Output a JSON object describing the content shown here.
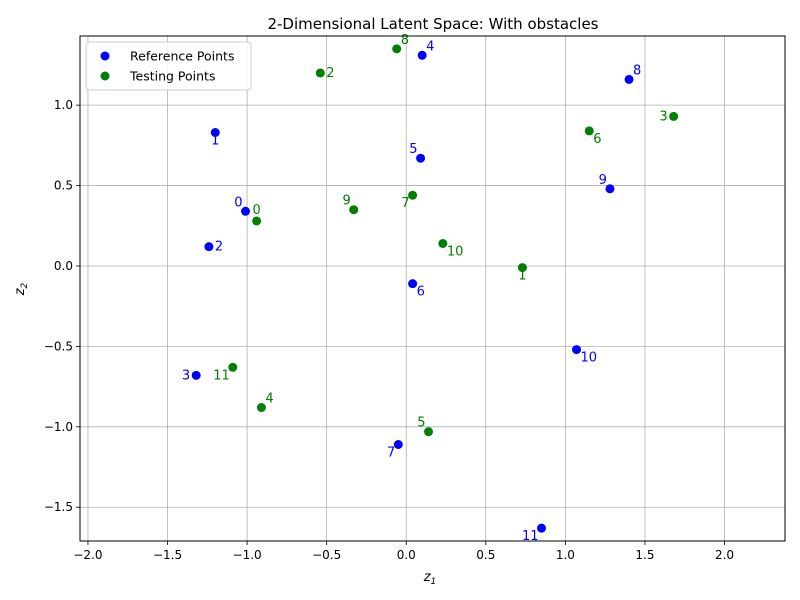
{
  "chart_data": {
    "type": "scatter",
    "title": "2-Dimensional Latent Space: With obstacles",
    "xlabel_base": "z",
    "xlabel_sub": "1",
    "ylabel_base": "z",
    "ylabel_sub": "2",
    "xlim": [
      -2.05,
      2.38
    ],
    "ylim": [
      -1.71,
      1.43
    ],
    "xticks": [
      -2.0,
      -1.5,
      -1.0,
      -0.5,
      0.0,
      0.5,
      1.0,
      1.5,
      2.0
    ],
    "xtick_labels": [
      "−2.0",
      "−1.5",
      "−1.0",
      "−0.5",
      "0.0",
      "0.5",
      "1.0",
      "1.5",
      "2.0"
    ],
    "yticks": [
      -1.5,
      -1.0,
      -0.5,
      0.0,
      0.5,
      1.0
    ],
    "ytick_labels": [
      "−1.5",
      "−1.0",
      "−0.5",
      "0.0",
      "0.5",
      "1.0"
    ],
    "grid": true,
    "legend_position": "top-left",
    "series": [
      {
        "name": "Reference Points",
        "color": "#0000ff",
        "points": [
          {
            "label": "0",
            "x": -1.01,
            "y": 0.34,
            "lpos": "above-left"
          },
          {
            "label": "1",
            "x": -1.2,
            "y": 0.83,
            "lpos": "below"
          },
          {
            "label": "2",
            "x": -1.24,
            "y": 0.12,
            "lpos": "right"
          },
          {
            "label": "3",
            "x": -1.32,
            "y": -0.68,
            "lpos": "left"
          },
          {
            "label": "4",
            "x": 0.1,
            "y": 1.31,
            "lpos": "above-right"
          },
          {
            "label": "5",
            "x": 0.09,
            "y": 0.67,
            "lpos": "above-left"
          },
          {
            "label": "6",
            "x": 0.04,
            "y": -0.11,
            "lpos": "below-right"
          },
          {
            "label": "7",
            "x": -0.05,
            "y": -1.11,
            "lpos": "below-left"
          },
          {
            "label": "8",
            "x": 1.4,
            "y": 1.16,
            "lpos": "above-right"
          },
          {
            "label": "9",
            "x": 1.28,
            "y": 0.48,
            "lpos": "above-left"
          },
          {
            "label": "10",
            "x": 1.07,
            "y": -0.52,
            "lpos": "below-right"
          },
          {
            "label": "11",
            "x": 0.85,
            "y": -1.63,
            "lpos": "below-left"
          }
        ]
      },
      {
        "name": "Testing Points",
        "color": "#008000",
        "points": [
          {
            "label": "0",
            "x": -0.94,
            "y": 0.28,
            "lpos": "above"
          },
          {
            "label": "1",
            "x": 0.73,
            "y": -0.01,
            "lpos": "below"
          },
          {
            "label": "2",
            "x": -0.54,
            "y": 1.2,
            "lpos": "right"
          },
          {
            "label": "3",
            "x": 1.68,
            "y": 0.93,
            "lpos": "left"
          },
          {
            "label": "4",
            "x": -0.91,
            "y": -0.88,
            "lpos": "above-right"
          },
          {
            "label": "5",
            "x": 0.14,
            "y": -1.03,
            "lpos": "above-left"
          },
          {
            "label": "6",
            "x": 1.15,
            "y": 0.84,
            "lpos": "below-right"
          },
          {
            "label": "7",
            "x": 0.04,
            "y": 0.44,
            "lpos": "below-left"
          },
          {
            "label": "8",
            "x": -0.06,
            "y": 1.35,
            "lpos": "above-right"
          },
          {
            "label": "9",
            "x": -0.33,
            "y": 0.35,
            "lpos": "above-left"
          },
          {
            "label": "10",
            "x": 0.23,
            "y": 0.14,
            "lpos": "below-right"
          },
          {
            "label": "11",
            "x": -1.09,
            "y": -0.63,
            "lpos": "below-left"
          }
        ]
      }
    ]
  }
}
